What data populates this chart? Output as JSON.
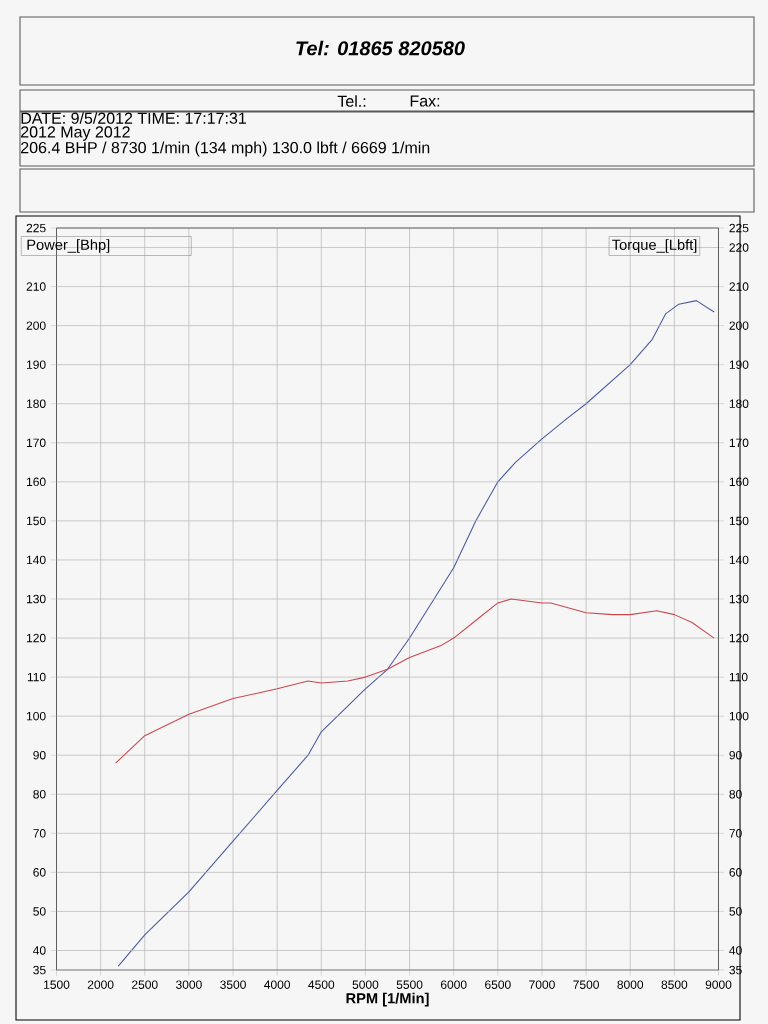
{
  "chart_data": {
    "type": "line",
    "title": "Tel: 01865 820580",
    "annotations": [
      "Tel.:",
      "Fax:",
      "DATE: 9/5/2012  TIME: 17:17:31",
      "2012   May 2012",
      "206.4 BHP / 8730 1/min (134 mph)     130.0 lbft / 6669 1/min"
    ],
    "xlabel": "RPM  [1/Min]",
    "ylabel": "Power_[Bhp]",
    "y2label": "Torque_[Lbft]",
    "xlim": [
      1500,
      9000
    ],
    "xticks": [
      1500,
      2000,
      2500,
      3000,
      3500,
      4000,
      4500,
      5000,
      5500,
      6000,
      6500,
      7000,
      7500,
      8000,
      8500,
      9000
    ],
    "ylim": [
      35,
      225
    ],
    "yticks": [
      35,
      40,
      50,
      60,
      70,
      80,
      90,
      100,
      110,
      120,
      130,
      140,
      150,
      160,
      170,
      180,
      190,
      200,
      210,
      225
    ],
    "y2lim": [
      35,
      225
    ],
    "y2ticks": [
      35,
      40,
      50,
      60,
      70,
      80,
      90,
      100,
      110,
      120,
      130,
      140,
      150,
      160,
      170,
      180,
      190,
      200,
      210,
      220,
      225
    ],
    "grid": true,
    "series": [
      {
        "color": "#4a5a9e",
        "x": [
          2200,
          2500,
          3000,
          3500,
          4000,
          4350,
          4500,
          5000,
          5250,
          5500,
          6000,
          6250,
          6500,
          6700,
          7000,
          7300,
          7500,
          8000,
          8250,
          8400,
          8550,
          8750,
          8950
        ],
        "values": [
          36,
          44,
          55,
          68,
          81,
          90,
          96,
          107,
          112,
          120,
          138,
          150,
          160,
          165,
          171,
          176.5,
          180,
          190,
          196.5,
          203,
          205.5,
          206.4,
          203.5
        ]
      },
      {
        "color": "#c84850",
        "axis": "y2",
        "x": [
          2170,
          2500,
          3000,
          3500,
          3800,
          4000,
          4350,
          4500,
          4800,
          5000,
          5250,
          5500,
          5850,
          6000,
          6250,
          6500,
          6650,
          7000,
          7100,
          7500,
          7800,
          8000,
          8300,
          8500,
          8700,
          8950
        ],
        "values": [
          88,
          95,
          100.5,
          104.5,
          106,
          107,
          109,
          108.5,
          109,
          110,
          112,
          115,
          118,
          120,
          124.5,
          129,
          130,
          129,
          129,
          126.5,
          126,
          126,
          127,
          126,
          124,
          120
        ]
      }
    ]
  }
}
